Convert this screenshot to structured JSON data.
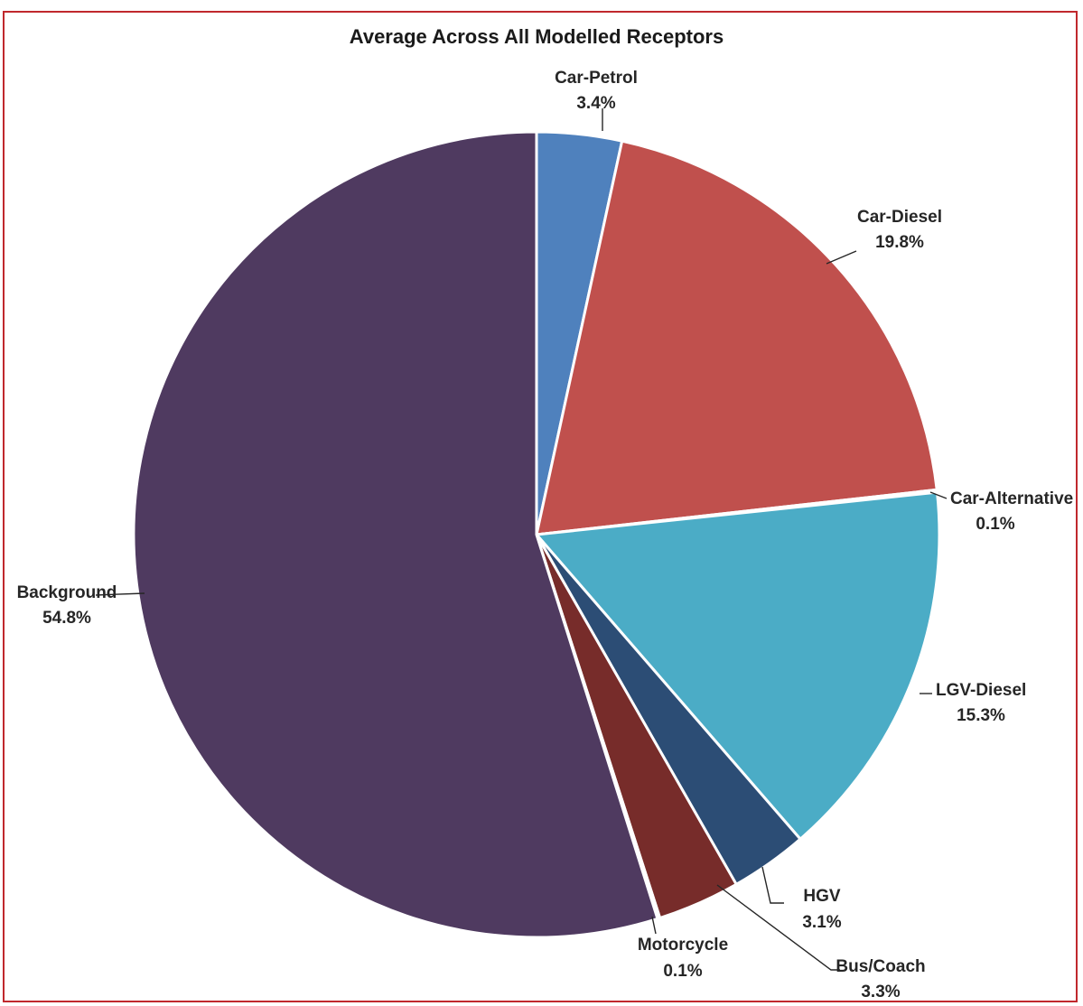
{
  "chart_data": {
    "type": "pie",
    "title": "Average Across All Modelled Receptors",
    "slices": [
      {
        "label": "Car-Petrol",
        "value": 3.4,
        "display": "3.4%",
        "color": "#4f81bd"
      },
      {
        "label": "Car-Diesel",
        "value": 19.8,
        "display": "19.8%",
        "color": "#c0504d"
      },
      {
        "label": "Car-Alternative",
        "value": 0.1,
        "display": "0.1%",
        "color": "#9bbb59"
      },
      {
        "label": "LGV-Diesel",
        "value": 15.3,
        "display": "15.3%",
        "color": "#4bacc6"
      },
      {
        "label": "HGV",
        "value": 3.1,
        "display": "3.1%",
        "color": "#2c4d75"
      },
      {
        "label": "Bus/Coach",
        "value": 3.3,
        "display": "3.3%",
        "color": "#772c2a"
      },
      {
        "label": "Motorcycle",
        "value": 0.1,
        "display": "0.1%",
        "color": "#5f7530"
      },
      {
        "label": "Background",
        "value": 54.8,
        "display": "54.8%",
        "color": "#4f3a60"
      }
    ],
    "legend": "none",
    "data_labels": "outside with leader lines"
  }
}
